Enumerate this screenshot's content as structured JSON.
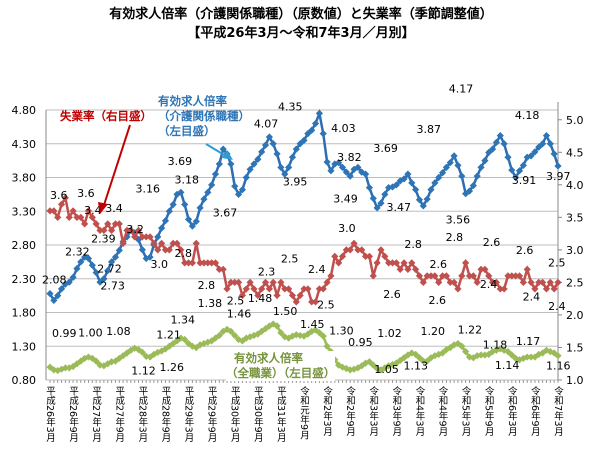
{
  "chart_data": {
    "type": "line",
    "title": "有効求人倍率（介護関係職種）（原数値）と失業率（季節調整値）",
    "subtitle": "【平成26年3月～令和7年3月／月別】",
    "x_tick_labels": [
      "平成26年3月",
      "平成26年9月",
      "平成27年3月",
      "平成27年9月",
      "平成28年3月",
      "平成28年9月",
      "平成29年3月",
      "平成29年9月",
      "平成30年3月",
      "平成30年9月",
      "平成31年3月",
      "令和元年9月",
      "令和2年3月",
      "令和2年9月",
      "令和3年3月",
      "令和3年9月",
      "令和4年3月",
      "令和4年9月",
      "令和5年3月",
      "令和5年9月",
      "令和6年3月",
      "令和6年9月",
      "令和7年3月"
    ],
    "x_range": [
      "平成26年3月",
      "令和7年3月"
    ],
    "x_interval": "月",
    "left_axis": {
      "ylim": [
        0.8,
        4.8
      ],
      "ticks": [
        "0.80",
        "1.30",
        "1.80",
        "2.30",
        "2.80",
        "3.30",
        "3.80",
        "4.30",
        "4.80"
      ]
    },
    "right_axis": {
      "ylim": [
        1.0,
        5.15
      ],
      "ticks": [
        "1.0",
        "1.5",
        "2.0",
        "2.5",
        "3.0",
        "3.5",
        "4.0",
        "4.5",
        "5.0"
      ]
    },
    "grid": true,
    "series": [
      {
        "name": "有効求人倍率（介護関係職種）（左目盛）",
        "axis": "left",
        "color": "#2E75B6",
        "values": [
          2.08,
          1.98,
          2.05,
          2.15,
          2.22,
          2.25,
          2.32,
          2.45,
          2.55,
          2.62,
          2.6,
          2.5,
          2.39,
          2.25,
          2.3,
          2.42,
          2.55,
          2.62,
          2.72,
          2.85,
          2.92,
          3.02,
          2.98,
          2.88,
          2.73,
          2.6,
          2.62,
          2.8,
          2.92,
          3.05,
          3.16,
          3.3,
          3.4,
          3.55,
          3.58,
          3.4,
          3.18,
          3.08,
          3.15,
          3.35,
          3.48,
          3.58,
          3.69,
          3.85,
          4.0,
          4.22,
          4.15,
          4.0,
          3.67,
          3.55,
          3.62,
          3.8,
          3.92,
          4.0,
          4.07,
          4.18,
          4.28,
          4.4,
          4.3,
          4.15,
          3.95,
          3.85,
          3.95,
          4.1,
          4.22,
          4.3,
          4.35,
          4.45,
          4.5,
          4.6,
          4.75,
          4.45,
          4.03,
          3.9,
          4.0,
          4.02,
          3.95,
          3.88,
          3.82,
          3.92,
          3.95,
          3.88,
          3.85,
          3.65,
          3.49,
          3.35,
          3.42,
          3.55,
          3.65,
          3.66,
          3.69,
          3.75,
          3.78,
          3.85,
          3.72,
          3.62,
          3.47,
          3.38,
          3.48,
          3.62,
          3.72,
          3.8,
          3.87,
          3.95,
          4.02,
          4.12,
          3.98,
          3.82,
          3.56,
          3.6,
          3.68,
          3.82,
          3.95,
          4.05,
          4.17,
          4.22,
          4.32,
          4.42,
          4.3,
          4.1,
          3.91,
          3.8,
          3.9,
          3.98,
          4.1,
          4.12,
          4.18,
          4.25,
          4.3,
          4.42,
          4.3,
          4.15,
          3.97
        ],
        "labels": [
          [
            0,
            "2.08"
          ],
          [
            6,
            "2.32"
          ],
          [
            12,
            "2.39"
          ],
          [
            18,
            "2.72"
          ],
          [
            24,
            "2.73"
          ],
          [
            30,
            "3.16"
          ],
          [
            36,
            "3.18"
          ],
          [
            42,
            "3.69"
          ],
          [
            48,
            "3.67"
          ],
          [
            54,
            "4.07"
          ],
          [
            60,
            "3.95"
          ],
          [
            66,
            "4.35"
          ],
          [
            72,
            "4.03"
          ],
          [
            78,
            "3.82"
          ],
          [
            84,
            "3.49"
          ],
          [
            90,
            "3.69"
          ],
          [
            96,
            "3.47"
          ],
          [
            102,
            "3.87"
          ],
          [
            108,
            "3.56"
          ],
          [
            114,
            "4.17"
          ],
          [
            120,
            "3.91"
          ],
          [
            126,
            "4.18"
          ],
          [
            132,
            "3.97"
          ]
        ]
      },
      {
        "name": "失業率（右目盛）",
        "axis": "right",
        "color": "#C0504D",
        "values": [
          3.6,
          3.6,
          3.5,
          3.7,
          3.8,
          3.5,
          3.6,
          3.5,
          3.5,
          3.4,
          3.6,
          3.5,
          3.4,
          3.3,
          3.3,
          3.4,
          3.3,
          3.4,
          3.4,
          3.1,
          3.3,
          3.3,
          3.2,
          3.3,
          3.2,
          3.2,
          3.2,
          3.1,
          3.0,
          3.1,
          3.0,
          3.0,
          3.1,
          3.1,
          3.0,
          2.8,
          2.8,
          2.8,
          3.1,
          2.8,
          2.8,
          2.8,
          2.8,
          2.8,
          2.7,
          2.7,
          2.4,
          2.5,
          2.5,
          2.5,
          2.3,
          2.4,
          2.5,
          2.4,
          2.3,
          2.4,
          2.5,
          2.4,
          2.5,
          2.3,
          2.5,
          2.4,
          2.4,
          2.3,
          2.2,
          2.3,
          2.4,
          2.4,
          2.2,
          2.2,
          2.4,
          2.4,
          2.5,
          2.6,
          2.9,
          2.8,
          2.9,
          3.0,
          3.0,
          3.1,
          3.0,
          3.0,
          2.9,
          2.9,
          2.6,
          2.8,
          3.0,
          2.9,
          2.8,
          2.8,
          2.8,
          2.7,
          2.8,
          2.7,
          2.8,
          2.7,
          2.6,
          2.5,
          2.6,
          2.6,
          2.6,
          2.5,
          2.6,
          2.6,
          2.5,
          2.5,
          2.4,
          2.6,
          2.8,
          2.6,
          2.6,
          2.5,
          2.7,
          2.7,
          2.6,
          2.5,
          2.5,
          2.4,
          2.4,
          2.6,
          2.6,
          2.6,
          2.6,
          2.5,
          2.7,
          2.5,
          2.4,
          2.5,
          2.5,
          2.4,
          2.5,
          2.4,
          2.5
        ],
        "labels": [
          [
            0,
            "3.6"
          ],
          [
            6,
            "3.6"
          ],
          [
            12,
            "3.4"
          ],
          [
            18,
            "3.4"
          ],
          [
            24,
            "3.2"
          ],
          [
            30,
            "3.0"
          ],
          [
            36,
            "2.8"
          ],
          [
            42,
            "2.8"
          ],
          [
            48,
            "2.5"
          ],
          [
            54,
            "2.3"
          ],
          [
            60,
            "2.5"
          ],
          [
            66,
            "2.4"
          ],
          [
            72,
            "2.5"
          ],
          [
            78,
            "3.0"
          ],
          [
            84,
            "2.6"
          ],
          [
            90,
            "2.8"
          ],
          [
            96,
            "2.6"
          ],
          [
            102,
            "2.6"
          ],
          [
            108,
            "2.8"
          ],
          [
            114,
            "2.6"
          ],
          [
            120,
            "2.4"
          ],
          [
            126,
            "2.6"
          ],
          [
            128,
            "2.4"
          ],
          [
            132,
            "2.5"
          ],
          [
            131,
            "2.4"
          ]
        ]
      },
      {
        "name": "有効求人倍率（全職業）（左目盛）",
        "axis": "left",
        "color": "#9BBB59",
        "values": [
          0.99,
          0.95,
          0.94,
          0.96,
          0.98,
          0.98,
          1.0,
          1.04,
          1.08,
          1.12,
          1.14,
          1.12,
          1.08,
          1.02,
          1.01,
          1.04,
          1.07,
          1.08,
          1.12,
          1.16,
          1.2,
          1.24,
          1.27,
          1.25,
          1.21,
          1.15,
          1.14,
          1.18,
          1.21,
          1.23,
          1.26,
          1.3,
          1.34,
          1.38,
          1.42,
          1.4,
          1.34,
          1.3,
          1.28,
          1.32,
          1.34,
          1.36,
          1.38,
          1.42,
          1.46,
          1.52,
          1.55,
          1.52,
          1.46,
          1.4,
          1.38,
          1.42,
          1.44,
          1.46,
          1.48,
          1.52,
          1.56,
          1.6,
          1.63,
          1.6,
          1.5,
          1.44,
          1.42,
          1.45,
          1.47,
          1.46,
          1.45,
          1.48,
          1.52,
          1.54,
          1.5,
          1.45,
          1.3,
          1.22,
          1.1,
          1.02,
          0.99,
          0.97,
          0.95,
          0.96,
          0.98,
          1.01,
          1.05,
          1.07,
          1.02,
          0.97,
          0.95,
          0.98,
          1.01,
          1.03,
          1.05,
          1.09,
          1.13,
          1.17,
          1.2,
          1.18,
          1.13,
          1.08,
          1.08,
          1.13,
          1.16,
          1.18,
          1.2,
          1.25,
          1.28,
          1.32,
          1.34,
          1.3,
          1.22,
          1.14,
          1.13,
          1.16,
          1.17,
          1.17,
          1.18,
          1.22,
          1.24,
          1.26,
          1.24,
          1.22,
          1.17,
          1.12,
          1.1,
          1.12,
          1.14,
          1.14,
          1.14,
          1.18,
          1.2,
          1.24,
          1.22,
          1.2,
          1.16
        ],
        "labels": [
          [
            0,
            "0.99"
          ],
          [
            6,
            "1.00"
          ],
          [
            12,
            "1.08"
          ],
          [
            18,
            "1.12"
          ],
          [
            24,
            "1.21"
          ],
          [
            30,
            "1.26"
          ],
          [
            36,
            "1.34"
          ],
          [
            42,
            "1.38"
          ],
          [
            48,
            "1.46"
          ],
          [
            54,
            "1.48"
          ],
          [
            60,
            "1.50"
          ],
          [
            66,
            "1.45"
          ],
          [
            72,
            "1.30"
          ],
          [
            78,
            "0.95"
          ],
          [
            84,
            "1.02"
          ],
          [
            90,
            "1.05"
          ],
          [
            96,
            "1.13"
          ],
          [
            102,
            "1.20"
          ],
          [
            108,
            "1.22"
          ],
          [
            114,
            "1.18"
          ],
          [
            120,
            "1.17"
          ],
          [
            126,
            "1.14"
          ],
          [
            132,
            "1.16"
          ]
        ]
      }
    ],
    "annotations": {
      "unemployment": "失業率（右目盛）",
      "care_line1": "有効求人倍率",
      "care_line2": "（介護関係職種）",
      "care_line3": "（左目盛）",
      "all_line1": "有効求人倍率",
      "all_line2": "（全職業）（左目盛）"
    }
  }
}
